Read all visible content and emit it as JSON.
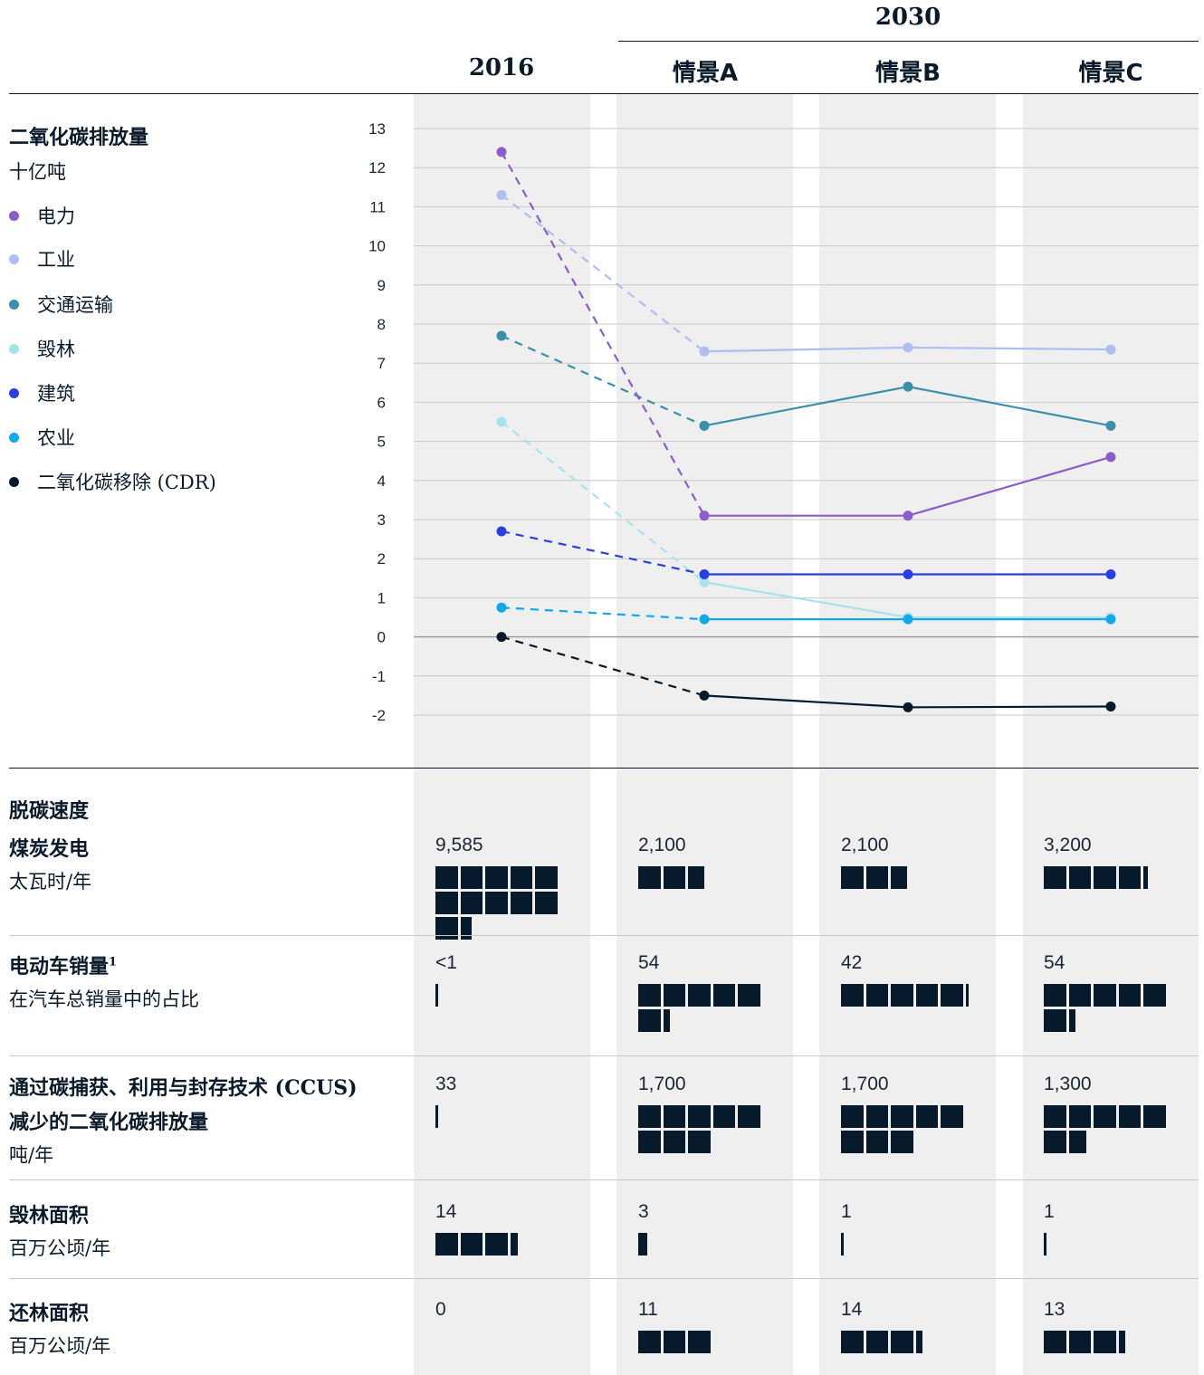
{
  "header": {
    "group_label": "2030",
    "columns": [
      "2016",
      "情景A",
      "情景B",
      "情景C"
    ]
  },
  "legend": {
    "title": "二氧化碳排放量",
    "unit": "十亿吨",
    "items": [
      {
        "label": "电力",
        "color": "#8c5cc8"
      },
      {
        "label": "工业",
        "color": "#aebdf2"
      },
      {
        "label": "交通运输",
        "color": "#3c8fa8"
      },
      {
        "label": "毁林",
        "color": "#a8e2ee"
      },
      {
        "label": "建筑",
        "color": "#2a3fe0"
      },
      {
        "label": "农业",
        "color": "#14a8e8"
      },
      {
        "label": "二氧化碳移除 (CDR)",
        "color": "#061a2b"
      }
    ]
  },
  "chart_data": {
    "type": "line",
    "categories": [
      "2016",
      "情景A",
      "情景B",
      "情景C"
    ],
    "ylim": [
      -2,
      13
    ],
    "yticks": [
      13,
      12,
      11,
      10,
      9,
      8,
      7,
      6,
      5,
      4,
      3,
      2,
      1,
      0,
      -1,
      -2
    ],
    "grid": true,
    "note_style": "2016→情景A dashed; 2030 scenarios solid",
    "series": [
      {
        "name": "工业",
        "color": "#aebdf2",
        "values": [
          11.3,
          7.3,
          7.4,
          7.35
        ]
      },
      {
        "name": "交通运输",
        "color": "#3c8fa8",
        "values": [
          7.7,
          5.4,
          6.4,
          5.4
        ]
      },
      {
        "name": "毁林",
        "color": "#a8e2ee",
        "values": [
          5.5,
          1.4,
          0.5,
          0.5
        ]
      },
      {
        "name": "电力",
        "color": "#8c5cc8",
        "values": [
          12.4,
          3.1,
          3.1,
          4.6
        ]
      },
      {
        "name": "建筑",
        "color": "#2a3fe0",
        "values": [
          2.7,
          1.6,
          1.6,
          1.6
        ]
      },
      {
        "name": "农业",
        "color": "#14a8e8",
        "values": [
          0.75,
          0.45,
          0.45,
          0.45
        ]
      },
      {
        "name": "二氧化碳移除 (CDR)",
        "color": "#061a2b",
        "values": [
          0,
          -1.5,
          -1.8,
          -1.78
        ]
      }
    ]
  },
  "metrics_title": "脱碳速度",
  "metrics": [
    {
      "title": "煤炭发电",
      "sub": [
        "太瓦时/年"
      ],
      "values": [
        "9,585",
        "2,100",
        "2,100",
        "3,200"
      ],
      "units": [
        11.5,
        2.75,
        2.75,
        4.2
      ]
    },
    {
      "title": "电动车销量",
      "footnote": "1",
      "sub": [
        "在汽车总销量中的占比"
      ],
      "values": [
        "<1",
        "54",
        "42",
        "54"
      ],
      "units": [
        0.1,
        6.3,
        5.05,
        6.3
      ]
    },
    {
      "title": "通过碳捕获、利用与封存技术 (CCUS)",
      "title2": "减少的二氧化碳排放量",
      "sub": [
        "吨/年"
      ],
      "values": [
        "33",
        "1,700",
        "1,700",
        "1,300"
      ],
      "units": [
        0.1,
        8,
        8,
        6.8
      ]
    },
    {
      "title": "毁林面积",
      "sub": [
        "百万公顷/年"
      ],
      "values": [
        "14",
        "3",
        "1",
        "1"
      ],
      "units": [
        3.35,
        0.4,
        0.1,
        0.1
      ]
    },
    {
      "title": "还林面积",
      "sub": [
        "百万公顷/年"
      ],
      "values": [
        "0",
        "11",
        "14",
        "13"
      ],
      "units": [
        0,
        3,
        3.3,
        3.3
      ]
    }
  ]
}
